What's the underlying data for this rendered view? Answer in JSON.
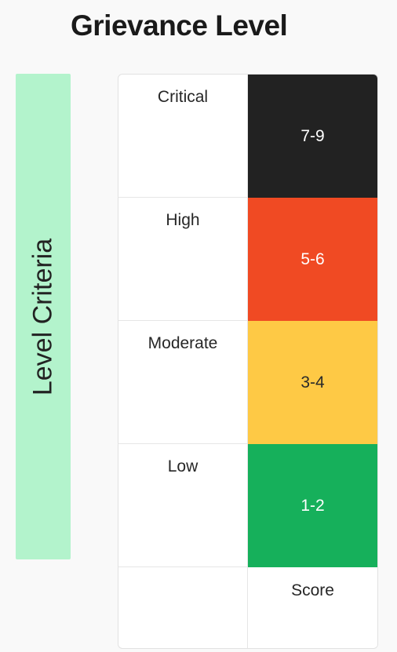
{
  "title": "Grievance Level",
  "criteria_label": "Level Criteria",
  "levels": [
    {
      "label": "Critical",
      "score": "7-9",
      "color": "#222222",
      "text_color": "#ffffff"
    },
    {
      "label": "High",
      "score": "5-6",
      "color": "#f04a23",
      "text_color": "#ffffff"
    },
    {
      "label": "Moderate",
      "score": "3-4",
      "color": "#fec945",
      "text_color": "#2a2a2a"
    },
    {
      "label": "Low",
      "score": "1-2",
      "color": "#16b05b",
      "text_color": "#ffffff"
    }
  ],
  "footer": {
    "label": "",
    "score_header": "Score"
  }
}
